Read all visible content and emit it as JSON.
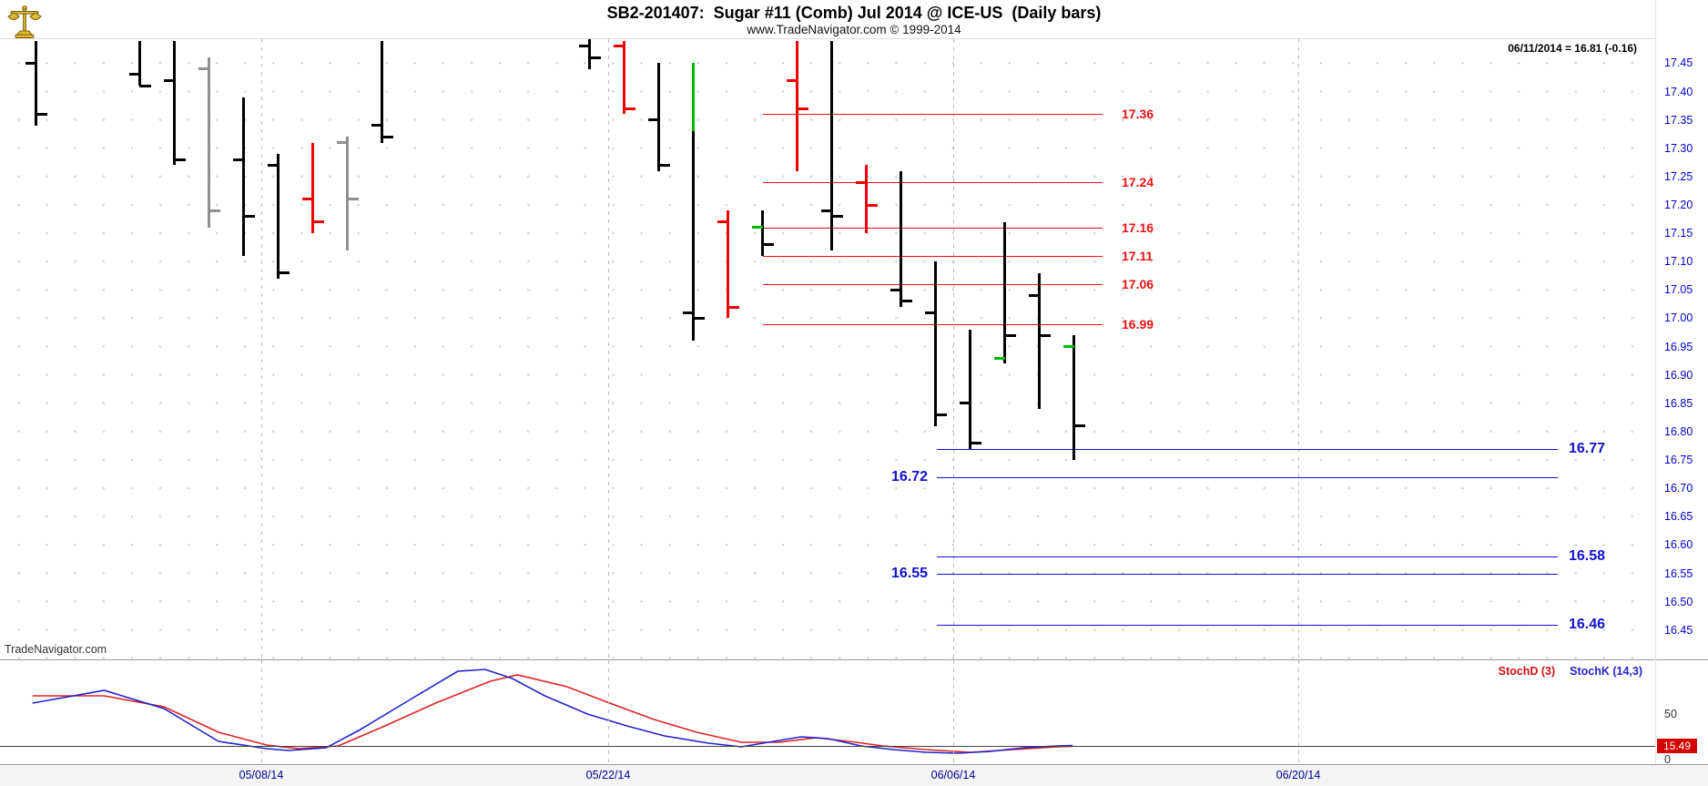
{
  "header": {
    "title": "SB2-201407:  Sugar #11 (Comb) Jul 2014 @ ICE-US  (Daily bars)",
    "subtitle": "www.TradeNavigator.com © 1999-2014",
    "quote": "06/11/2014 = 16.81 (-0.16)",
    "watermark": "TradeNavigator.com",
    "logo": "scales-icon"
  },
  "chart_data": {
    "type": "ohlc-bar",
    "title": "SB2-201407: Sugar #11 (Comb) Jul 2014 @ ICE-US (Daily bars)",
    "y_axis": {
      "labels": [
        "17.45",
        "17.40",
        "17.35",
        "17.30",
        "17.25",
        "17.20",
        "17.15",
        "17.10",
        "17.05",
        "17.00",
        "16.95",
        "16.90",
        "16.85",
        "16.80",
        "16.75",
        "16.70",
        "16.65",
        "16.60",
        "16.55",
        "16.50",
        "16.45"
      ],
      "color": "#0000cc",
      "range": [
        16.45,
        17.45
      ]
    },
    "x_axis": {
      "labels": [
        "05/08/14",
        "05/22/14",
        "06/06/14",
        "06/20/14"
      ],
      "color": "#000099"
    },
    "bars": [
      {
        "col": 0,
        "open": 17.45,
        "high": 17.49,
        "low": 17.34,
        "close": 17.36,
        "color": "black"
      },
      {
        "col": 3,
        "open": 17.43,
        "high": 17.49,
        "low": 17.41,
        "close": 17.41,
        "color": "black"
      },
      {
        "col": 4,
        "open": 17.42,
        "high": 17.49,
        "low": 17.27,
        "close": 17.28,
        "color": "black"
      },
      {
        "col": 5,
        "open": 17.44,
        "high": 17.46,
        "low": 17.16,
        "close": 17.19,
        "color": "gray"
      },
      {
        "col": 6,
        "open": 17.28,
        "high": 17.39,
        "low": 17.11,
        "close": 17.18,
        "color": "black"
      },
      {
        "col": 7,
        "open": 17.27,
        "high": 17.29,
        "low": 17.07,
        "close": 17.08,
        "color": "black"
      },
      {
        "col": 8,
        "open": 17.21,
        "high": 17.31,
        "low": 17.15,
        "close": 17.17,
        "color": "red"
      },
      {
        "col": 9,
        "open": 17.31,
        "high": 17.32,
        "low": 17.12,
        "close": 17.21,
        "color": "gray"
      },
      {
        "col": 10,
        "open": 17.34,
        "high": 17.49,
        "low": 17.31,
        "close": 17.32,
        "color": "black"
      },
      {
        "col": 16,
        "open": 17.48,
        "high": 17.5,
        "low": 17.44,
        "close": 17.46,
        "color": "black"
      },
      {
        "col": 17,
        "open": 17.48,
        "high": 17.49,
        "low": 17.36,
        "close": 17.37,
        "color": "red"
      },
      {
        "col": 18,
        "open": 17.35,
        "high": 17.45,
        "low": 17.26,
        "close": 17.27,
        "color": "black"
      },
      {
        "col": 19,
        "open": null,
        "high": 17.45,
        "low": 17.33,
        "close": null,
        "color": "green"
      },
      {
        "col": 19,
        "open": 17.01,
        "high": 17.33,
        "low": 16.96,
        "close": 17.0,
        "color": "black"
      },
      {
        "col": 20,
        "open": 17.17,
        "high": 17.19,
        "low": 17.0,
        "close": 17.02,
        "color": "red"
      },
      {
        "col": 21,
        "open": 17.16,
        "high": 17.19,
        "low": 17.11,
        "close": 17.13,
        "color": "black",
        "open_tick": "green"
      },
      {
        "col": 22,
        "open": 17.42,
        "high": 17.49,
        "low": 17.26,
        "close": 17.37,
        "color": "red"
      },
      {
        "col": 23,
        "open": 17.19,
        "high": 17.49,
        "low": 17.12,
        "close": 17.18,
        "color": "black"
      },
      {
        "col": 24,
        "open": 17.24,
        "high": 17.27,
        "low": 17.15,
        "close": 17.2,
        "color": "red"
      },
      {
        "col": 25,
        "open": 17.05,
        "high": 17.26,
        "low": 17.02,
        "close": 17.03,
        "color": "black"
      },
      {
        "col": 26,
        "open": 17.01,
        "high": 17.1,
        "low": 16.81,
        "close": 16.83,
        "color": "black"
      },
      {
        "col": 27,
        "open": 16.85,
        "high": 16.98,
        "low": 16.77,
        "close": 16.78,
        "color": "black"
      },
      {
        "col": 28,
        "open": 16.93,
        "high": 17.17,
        "low": 16.92,
        "close": 16.97,
        "color": "black",
        "open_tick": "green"
      },
      {
        "col": 29,
        "open": 17.04,
        "high": 17.08,
        "low": 16.84,
        "close": 16.97,
        "color": "black"
      },
      {
        "col": 30,
        "open": 16.95,
        "high": 16.97,
        "low": 16.75,
        "close": 16.81,
        "color": "black",
        "open_tick": "green"
      }
    ],
    "red_levels": [
      {
        "value": 17.36,
        "label": "17.36"
      },
      {
        "value": 17.24,
        "label": "17.24"
      },
      {
        "value": 17.16,
        "label": "17.16"
      },
      {
        "value": 17.11,
        "label": "17.11"
      },
      {
        "value": 17.06,
        "label": "17.06"
      },
      {
        "value": 16.99,
        "label": "16.99"
      }
    ],
    "blue_levels": [
      {
        "value": 16.77,
        "label": "16.77",
        "label_side": "right"
      },
      {
        "value": 16.72,
        "label": "16.72",
        "label_side": "left"
      },
      {
        "value": 16.58,
        "label": "16.58",
        "label_side": "right"
      },
      {
        "value": 16.55,
        "label": "16.55",
        "label_side": "left"
      },
      {
        "value": 16.46,
        "label": "16.46",
        "label_side": "right"
      }
    ],
    "stochastic": {
      "legend_d": "StochD (3)",
      "legend_k": "StochK (14,3)",
      "axis_labels": [
        "50",
        "0"
      ],
      "current_value": "15.49",
      "range": [
        0,
        100
      ],
      "d": [
        [
          0.019,
          70
        ],
        [
          0.061,
          70
        ],
        [
          0.096,
          58
        ],
        [
          0.128,
          30
        ],
        [
          0.156,
          16
        ],
        [
          0.175,
          12
        ],
        [
          0.198,
          15
        ],
        [
          0.223,
          35
        ],
        [
          0.255,
          62
        ],
        [
          0.287,
          86
        ],
        [
          0.303,
          93
        ],
        [
          0.332,
          80
        ],
        [
          0.357,
          62
        ],
        [
          0.383,
          44
        ],
        [
          0.408,
          30
        ],
        [
          0.434,
          19
        ],
        [
          0.456,
          19
        ],
        [
          0.478,
          24
        ],
        [
          0.497,
          20
        ],
        [
          0.517,
          15
        ],
        [
          0.542,
          11
        ],
        [
          0.568,
          8
        ],
        [
          0.593,
          11
        ],
        [
          0.619,
          14
        ],
        [
          0.628,
          14.5
        ]
      ],
      "k": [
        [
          0.019,
          62
        ],
        [
          0.061,
          76
        ],
        [
          0.096,
          56
        ],
        [
          0.128,
          20
        ],
        [
          0.156,
          12
        ],
        [
          0.169,
          10
        ],
        [
          0.191,
          13
        ],
        [
          0.21,
          32
        ],
        [
          0.242,
          68
        ],
        [
          0.268,
          97
        ],
        [
          0.284,
          99
        ],
        [
          0.3,
          89
        ],
        [
          0.319,
          70
        ],
        [
          0.344,
          50
        ],
        [
          0.367,
          37
        ],
        [
          0.389,
          26
        ],
        [
          0.415,
          18
        ],
        [
          0.434,
          14
        ],
        [
          0.453,
          20
        ],
        [
          0.469,
          25
        ],
        [
          0.485,
          23
        ],
        [
          0.504,
          15
        ],
        [
          0.523,
          11
        ],
        [
          0.542,
          8
        ],
        [
          0.561,
          7
        ],
        [
          0.58,
          9
        ],
        [
          0.599,
          13
        ],
        [
          0.619,
          15
        ],
        [
          0.628,
          15.5
        ]
      ]
    }
  },
  "colors": {
    "bar_black": "#000000",
    "bar_red": "#ee0000",
    "bar_green": "#00bb00",
    "bar_gray": "#8f8f8f",
    "level_red": "#ee1111",
    "level_blue": "#1111cc",
    "axis_blue": "#0000cc",
    "stoch_d": "#dd2222",
    "stoch_k": "#2222cc",
    "current_box_bg": "#d40000"
  }
}
